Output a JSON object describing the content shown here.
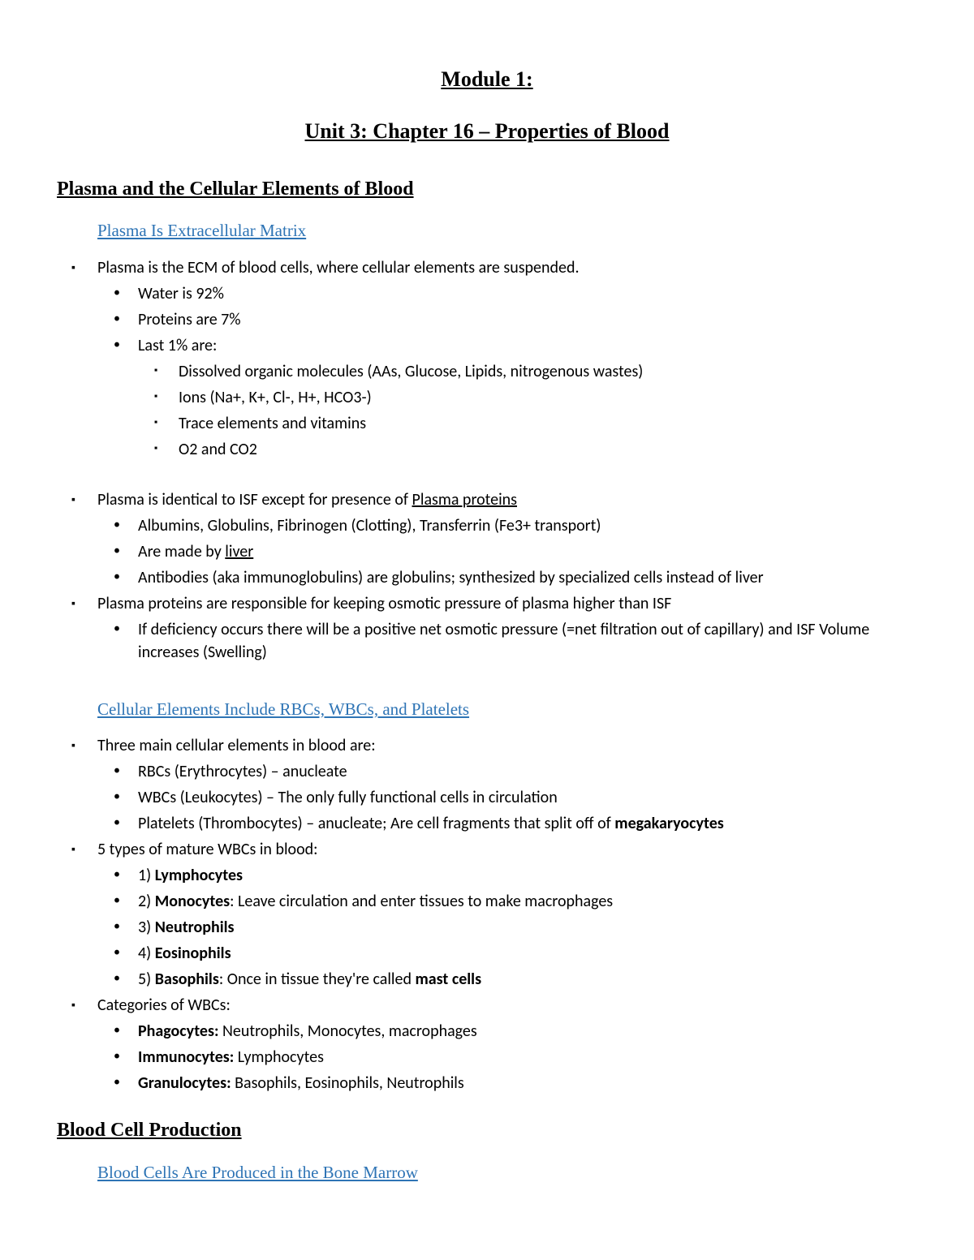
{
  "module_title": "Module 1:",
  "unit_title": "Unit 3: Chapter 16 – Properties of Blood",
  "section1": {
    "heading": "Plasma and the Cellular Elements of Blood",
    "sub1": {
      "heading": "Plasma Is Extracellular Matrix",
      "block1": {
        "item1": "Plasma is the ECM of blood cells, where cellular elements are suspended.",
        "sub": {
          "i1": "Water is 92%",
          "i2": "Proteins are 7%",
          "i3": "Last 1% are:",
          "subsub": {
            "i1": "Dissolved organic molecules (AAs, Glucose, Lipids, nitrogenous wastes)",
            "i2": "Ions (Na+, K+, Cl-, H+, HCO3-)",
            "i3": "Trace elements and vitamins",
            "i4": "O2 and CO2"
          }
        }
      },
      "block2": {
        "item1_pre": "Plasma is identical to ISF except for presence of ",
        "item1_u": "Plasma proteins",
        "sub": {
          "i1": "Albumins, Globulins, Fibrinogen (Clotting), Transferrin (Fe3+ transport)",
          "i2_pre": "Are made by ",
          "i2_u": "liver",
          "i3": "Antibodies (aka immunoglobulins) are globulins; synthesized by specialized cells instead of liver"
        },
        "item2": "Plasma proteins are responsible for keeping osmotic pressure of plasma higher than ISF",
        "sub2": {
          "i1": "If deficiency occurs there will be a positive net osmotic pressure  (=net filtration out of capillary) and ISF Volume increases (Swelling)"
        }
      }
    },
    "sub2": {
      "heading": "Cellular Elements Include RBCs, WBCs, and Platelets",
      "block1": {
        "item1": "Three main cellular elements in blood are:",
        "sub": {
          "i1": "RBCs (Erythrocytes) – anucleate",
          "i2": "WBCs (Leukocytes) – The only fully functional cells in circulation",
          "i3_pre": "Platelets (Thrombocytes) – anucleate; Are cell fragments that split off of ",
          "i3_b": "megakaryocytes"
        },
        "item2": "5 types of mature WBCs in blood:",
        "sub2": {
          "i1_pre": "1) ",
          "i1_b": "Lymphocytes",
          "i2_pre": "2) ",
          "i2_b": "Monocytes",
          "i2_post": ": Leave circulation and enter tissues to make macrophages",
          "i3_pre": "3) ",
          "i3_b": "Neutrophils",
          "i4_pre": "4) ",
          "i4_b": "Eosinophils",
          "i5_pre": "5) ",
          "i5_b": "Basophils",
          "i5_mid": ": Once in tissue they're called ",
          "i5_b2": "mast cells"
        },
        "item3": "Categories of WBCs:",
        "sub3": {
          "i1_b": "Phagocytes:",
          "i1_post": " Neutrophils, Monocytes, macrophages",
          "i2_b": "Immunocytes:",
          "i2_post": " Lymphocytes",
          "i3_b": "Granulocytes:",
          "i3_post": " Basophils, Eosinophils, Neutrophils"
        }
      }
    }
  },
  "section2": {
    "heading": "Blood Cell Production",
    "sub1": {
      "heading": "Blood Cells Are Produced in the Bone Marrow"
    }
  }
}
